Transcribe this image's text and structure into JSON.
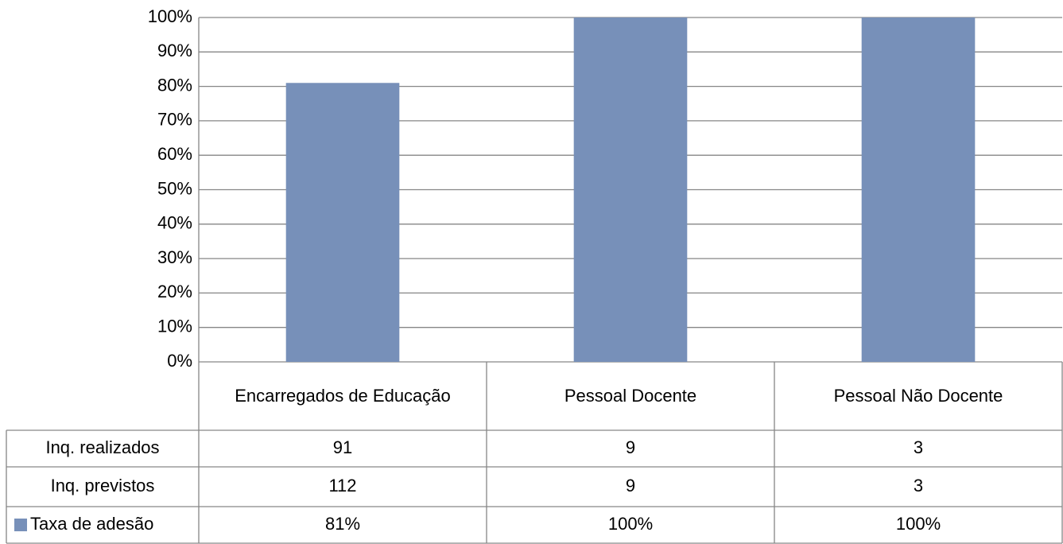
{
  "chart_data": {
    "type": "bar",
    "categories": [
      "Encarregados de Educação",
      "Pessoal Docente",
      "Pessoal Não Docente"
    ],
    "series": [
      {
        "name": "Taxa de adesão",
        "color": "#7790b9",
        "values": [
          81,
          100,
          100
        ],
        "value_labels": [
          "81%",
          "100%",
          "100%"
        ]
      }
    ],
    "table_rows": [
      {
        "name": "Inq. realizados",
        "values": [
          91,
          9,
          3
        ]
      },
      {
        "name": "Inq. previstos",
        "values": [
          112,
          9,
          3
        ]
      }
    ],
    "ylim": [
      0,
      100
    ],
    "yticks": [
      {
        "value": 0,
        "label": "0%"
      },
      {
        "value": 10,
        "label": "10%"
      },
      {
        "value": 20,
        "label": "20%"
      },
      {
        "value": 30,
        "label": "30%"
      },
      {
        "value": 40,
        "label": "40%"
      },
      {
        "value": 50,
        "label": "50%"
      },
      {
        "value": 60,
        "label": "60%"
      },
      {
        "value": 70,
        "label": "70%"
      },
      {
        "value": 80,
        "label": "80%"
      },
      {
        "value": 90,
        "label": "90%"
      },
      {
        "value": 100,
        "label": "100%"
      }
    ],
    "grid": true
  }
}
